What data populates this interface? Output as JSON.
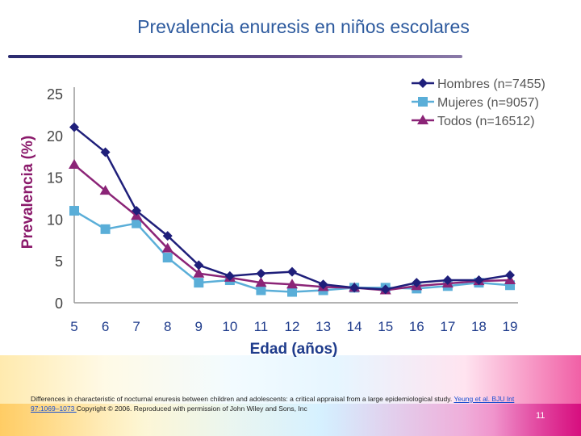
{
  "slide": {
    "title": "Prevalencia enuresis en niños escolares",
    "footer_text": "Differences in characteristic of nocturnal enuresis between children and adolescents: a critical appraisal from a large epidemiological study. ",
    "footer_link": "Yeung et al. BJU Int 97:1069–1073 ",
    "footer_rest": "Copyright © 2006. Reproduced with permission of John Wiley and Sons, Inc",
    "page_number": "11"
  },
  "chart_data": {
    "type": "line",
    "title": "",
    "xlabel": "Edad (años)",
    "ylabel": "Prevalencia (%)",
    "x": [
      5,
      6,
      7,
      8,
      9,
      10,
      11,
      12,
      13,
      14,
      15,
      16,
      17,
      18,
      19
    ],
    "ylim": [
      0,
      25
    ],
    "yticks": [
      0,
      5,
      10,
      15,
      20,
      25
    ],
    "grid": false,
    "legend_position": "top-right",
    "series": [
      {
        "name": "Hombres (n=7455)",
        "color": "#1f1f7a",
        "marker": "diamond",
        "values": [
          21.0,
          18.0,
          11.0,
          8.0,
          4.5,
          3.2,
          3.5,
          3.7,
          2.2,
          1.8,
          1.6,
          2.4,
          2.7,
          2.7,
          3.3
        ]
      },
      {
        "name": "Mujeres (n=9057)",
        "color": "#5aaed8",
        "marker": "square",
        "values": [
          11.0,
          8.8,
          9.5,
          5.4,
          2.4,
          2.7,
          1.5,
          1.3,
          1.5,
          1.8,
          1.8,
          1.7,
          2.0,
          2.4,
          2.1
        ]
      },
      {
        "name": "Todos (n=16512)",
        "color": "#8b2477",
        "marker": "triangle",
        "values": [
          16.5,
          13.4,
          10.4,
          6.5,
          3.5,
          3.0,
          2.4,
          2.2,
          1.9,
          1.8,
          1.5,
          2.0,
          2.3,
          2.6,
          2.7
        ]
      }
    ]
  }
}
